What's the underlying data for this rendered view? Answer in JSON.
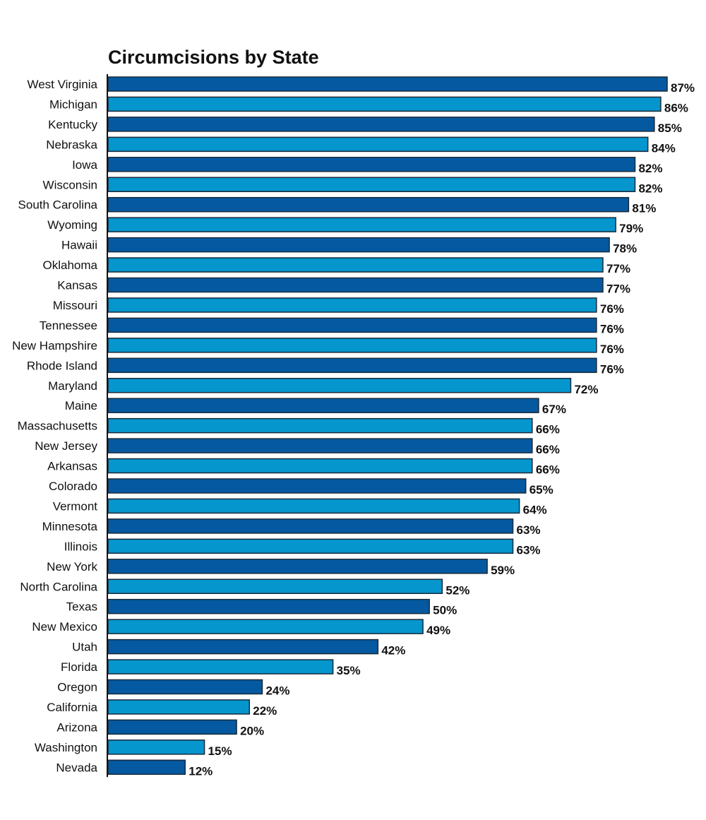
{
  "chart_data": {
    "type": "bar",
    "orientation": "horizontal",
    "title": "Circumcisions by State",
    "xlabel": "",
    "ylabel": "",
    "xlim": [
      0,
      87
    ],
    "grid": false,
    "legend": "none",
    "value_suffix": "%",
    "colors": [
      "#0459A1",
      "#0596CE"
    ],
    "bar_border_color": "#1a2a3a",
    "categories": [
      "West Virginia",
      "Michigan",
      "Kentucky",
      "Nebraska",
      "Iowa",
      "Wisconsin",
      "South Carolina",
      "Wyoming",
      "Hawaii",
      "Oklahoma",
      "Kansas",
      "Missouri",
      "Tennessee",
      "New Hampshire",
      "Rhode Island",
      "Maryland",
      "Maine",
      "Massachusetts",
      "New Jersey",
      "Arkansas",
      "Colorado",
      "Vermont",
      "Minnesota",
      "Illinois",
      "New York",
      "North Carolina",
      "Texas",
      "New Mexico",
      "Utah",
      "Florida",
      "Oregon",
      "California",
      "Arizona",
      "Washington",
      "Nevada"
    ],
    "values": [
      87,
      86,
      85,
      84,
      82,
      82,
      81,
      79,
      78,
      77,
      77,
      76,
      76,
      76,
      76,
      72,
      67,
      66,
      66,
      66,
      65,
      64,
      63,
      63,
      59,
      52,
      50,
      49,
      42,
      35,
      24,
      22,
      20,
      15,
      12
    ],
    "labels": [
      "87%",
      "86%",
      "85%",
      "84%",
      "82%",
      "82%",
      "81%",
      "79%",
      "78%",
      "77%",
      "77%",
      "76%",
      "76%",
      "76%",
      "76%",
      "72%",
      "67%",
      "66%",
      "66%",
      "66%",
      "65%",
      "64%",
      "63%",
      "63%",
      "59%",
      "52%",
      "50%",
      "49%",
      "42%",
      "35%",
      "24%",
      "22%",
      "20%",
      "15%",
      "12%"
    ]
  }
}
